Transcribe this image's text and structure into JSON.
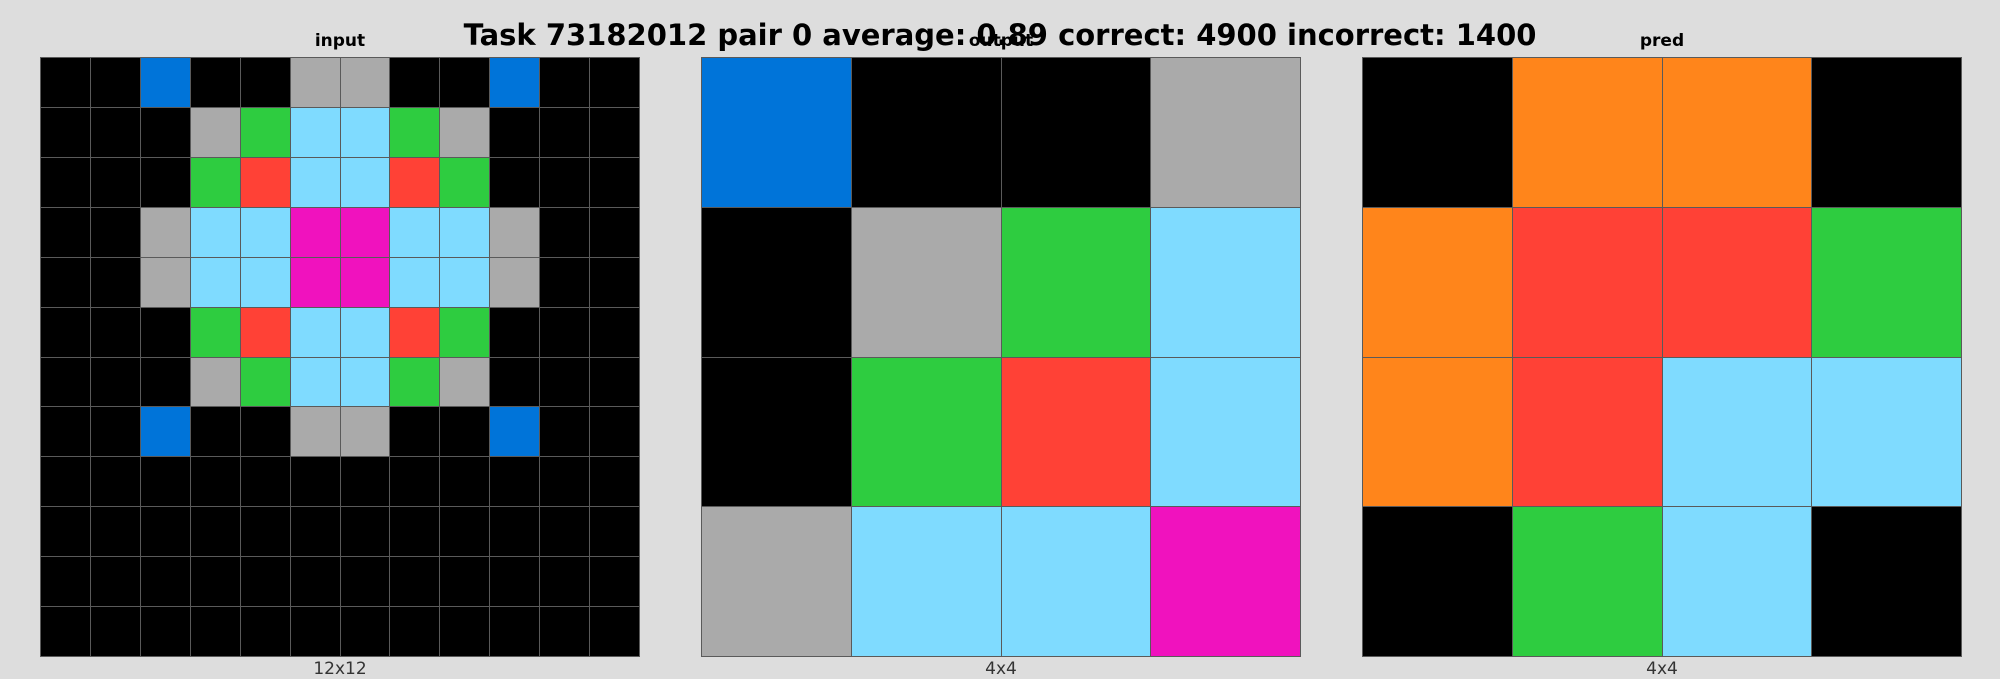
{
  "title": "Task 73182012 pair 0 average: 0.89 correct: 4900 incorrect: 1400",
  "palette": {
    "0": "#000000",
    "1": "#0074d9",
    "2": "#ff4136",
    "3": "#2ecc40",
    "5": "#aaaaaa",
    "6": "#f012be",
    "7": "#ff851b",
    "8": "#7fdbff"
  },
  "panels": [
    {
      "label": "input",
      "caption": "12x12",
      "grid": [
        [
          0,
          0,
          1,
          0,
          0,
          5,
          5,
          0,
          0,
          1,
          0,
          0
        ],
        [
          0,
          0,
          0,
          5,
          3,
          8,
          8,
          3,
          5,
          0,
          0,
          0
        ],
        [
          0,
          0,
          0,
          3,
          2,
          8,
          8,
          2,
          3,
          0,
          0,
          0
        ],
        [
          0,
          0,
          5,
          8,
          8,
          6,
          6,
          8,
          8,
          5,
          0,
          0
        ],
        [
          0,
          0,
          5,
          8,
          8,
          6,
          6,
          8,
          8,
          5,
          0,
          0
        ],
        [
          0,
          0,
          0,
          3,
          2,
          8,
          8,
          2,
          3,
          0,
          0,
          0
        ],
        [
          0,
          0,
          0,
          5,
          3,
          8,
          8,
          3,
          5,
          0,
          0,
          0
        ],
        [
          0,
          0,
          1,
          0,
          0,
          5,
          5,
          0,
          0,
          1,
          0,
          0
        ],
        [
          0,
          0,
          0,
          0,
          0,
          0,
          0,
          0,
          0,
          0,
          0,
          0
        ],
        [
          0,
          0,
          0,
          0,
          0,
          0,
          0,
          0,
          0,
          0,
          0,
          0
        ],
        [
          0,
          0,
          0,
          0,
          0,
          0,
          0,
          0,
          0,
          0,
          0,
          0
        ],
        [
          0,
          0,
          0,
          0,
          0,
          0,
          0,
          0,
          0,
          0,
          0,
          0
        ]
      ]
    },
    {
      "label": "output",
      "caption": "4x4",
      "grid": [
        [
          1,
          0,
          0,
          5
        ],
        [
          0,
          5,
          3,
          8
        ],
        [
          0,
          3,
          2,
          8
        ],
        [
          5,
          8,
          8,
          6
        ]
      ]
    },
    {
      "label": "pred",
      "caption": "4x4",
      "grid": [
        [
          0,
          7,
          7,
          0
        ],
        [
          7,
          2,
          2,
          3
        ],
        [
          7,
          2,
          8,
          8
        ],
        [
          0,
          3,
          8,
          0
        ]
      ]
    }
  ]
}
